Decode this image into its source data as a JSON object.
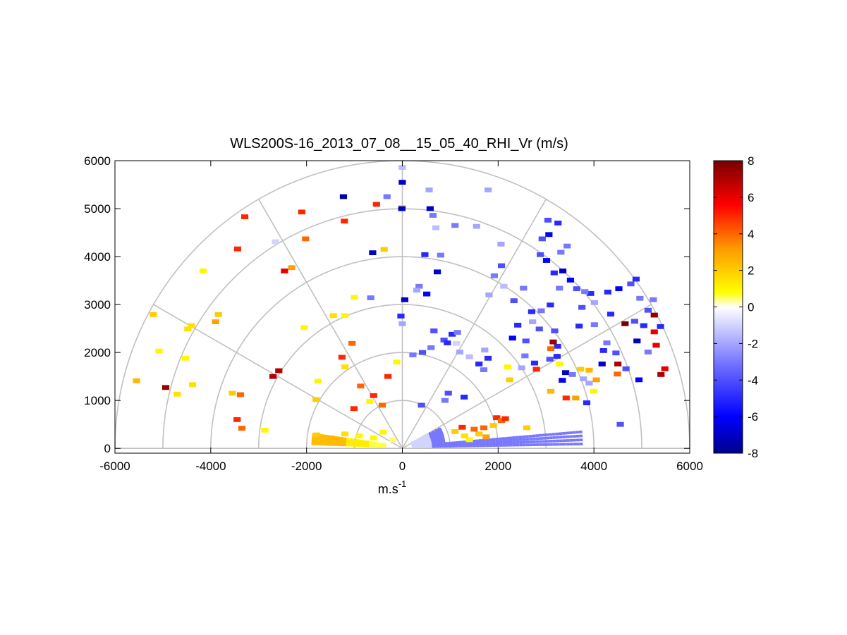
{
  "chart_data": {
    "type": "heatmap",
    "subtype": "polar-rhi-scan",
    "title": "WLS200S-16_2013_07_08__15_05_40_RHI_Vr (m/s)",
    "xlabel": "m.s",
    "xlabel_superscript": "-1",
    "ylabel": "",
    "xlim": [
      -6000,
      6000
    ],
    "ylim": [
      -100,
      6000
    ],
    "xticks": [
      -6000,
      -4000,
      -2000,
      0,
      2000,
      4000,
      6000
    ],
    "xtick_labels": [
      "-6000",
      "-4000",
      "-2000",
      "0",
      "2000",
      "4000",
      "6000"
    ],
    "yticks": [
      0,
      1000,
      2000,
      3000,
      4000,
      5000,
      6000
    ],
    "ytick_labels": [
      "0",
      "1000",
      "2000",
      "3000",
      "4000",
      "5000",
      "6000"
    ],
    "polar_grid": {
      "range_rings_m": [
        1000,
        2000,
        3000,
        4000,
        5000,
        6000
      ],
      "angle_spokes_deg": [
        0,
        30,
        60,
        90,
        120,
        150,
        180
      ],
      "grid_color": "#c0c0c0"
    },
    "colorbar": {
      "range": [
        -8,
        8
      ],
      "ticks": [
        -8,
        -6,
        -4,
        -2,
        0,
        2,
        4,
        6,
        8
      ],
      "tick_labels": [
        "-8",
        "-6",
        "-4",
        "-2",
        "0",
        "2",
        "4",
        "6",
        "8"
      ],
      "colormap": [
        "#00008c",
        "#0000ff",
        "#6f6fff",
        "#dcdcff",
        "#ffffff",
        "#ffff00",
        "#ff9900",
        "#ff0000",
        "#780000"
      ]
    },
    "gate_samples_note": "Representative sample of radial velocity gates (x_m, z_m, vr_ms) read off the scan",
    "gates": [
      [
        -1,
        5860,
        -1.5
      ],
      [
        -1,
        5550,
        -7
      ],
      [
        -2,
        5020,
        2
      ],
      [
        -540,
        5090,
        5
      ],
      [
        -1230,
        5250,
        -7.5
      ],
      [
        -320,
        5250,
        -3
      ],
      [
        -2100,
        4930,
        5
      ],
      [
        -3290,
        4830,
        5
      ],
      [
        -1210,
        4740,
        5
      ],
      [
        -2650,
        4310,
        -1
      ],
      [
        -3440,
        4160,
        5
      ],
      [
        -2020,
        4370,
        4
      ],
      [
        -620,
        4080,
        -7
      ],
      [
        -2460,
        3700,
        6
      ],
      [
        -2310,
        3770,
        3
      ],
      [
        -4160,
        3700,
        1
      ],
      [
        -380,
        4150,
        2
      ],
      [
        -3840,
        2790,
        2
      ],
      [
        -4400,
        2560,
        1.5
      ],
      [
        -3900,
        2640,
        3
      ],
      [
        -5200,
        2790,
        2
      ],
      [
        -4480,
        2490,
        1.5
      ],
      [
        -5080,
        2030,
        1
      ],
      [
        -4530,
        1880,
        1
      ],
      [
        -2580,
        1620,
        7
      ],
      [
        -3550,
        1150,
        2
      ],
      [
        -4380,
        1330,
        1.5
      ],
      [
        -4700,
        1130,
        1.5
      ],
      [
        -5550,
        1410,
        2.5
      ],
      [
        -4940,
        1270,
        7.5
      ],
      [
        -3380,
        1120,
        4
      ],
      [
        -3450,
        600,
        5
      ],
      [
        -3350,
        420,
        4
      ],
      [
        -1760,
        1400,
        1
      ],
      [
        -2870,
        380,
        1
      ],
      [
        -1790,
        280,
        2
      ],
      [
        -1500,
        220,
        2.5
      ],
      [
        -1200,
        300,
        1.5
      ],
      [
        -900,
        260,
        1
      ],
      [
        -600,
        220,
        1
      ],
      [
        -400,
        340,
        1
      ],
      [
        -200,
        180,
        0.5
      ],
      [
        -1800,
        1020,
        2
      ],
      [
        -1200,
        1700,
        1.5
      ],
      [
        -1050,
        2190,
        4
      ],
      [
        -120,
        1800,
        1
      ],
      [
        -300,
        1500,
        5
      ],
      [
        -600,
        1100,
        5
      ],
      [
        -870,
        1300,
        4
      ],
      [
        -1010,
        830,
        5
      ],
      [
        -680,
        980,
        1
      ],
      [
        -420,
        900,
        4
      ],
      [
        -2050,
        2520,
        1
      ],
      [
        -1000,
        3150,
        1
      ],
      [
        -1200,
        2770,
        1
      ],
      [
        -1440,
        2770,
        1.5
      ],
      [
        -1260,
        1900,
        5
      ],
      [
        -2700,
        1500,
        7
      ],
      [
        560,
        5390,
        -2
      ],
      [
        -10,
        5000,
        -7
      ],
      [
        580,
        5000,
        -7
      ],
      [
        640,
        4860,
        -3
      ],
      [
        700,
        4600,
        -1.5
      ],
      [
        470,
        4040,
        -5
      ],
      [
        730,
        3680,
        -7
      ],
      [
        800,
        4030,
        -3
      ],
      [
        350,
        3380,
        -3
      ],
      [
        50,
        3100,
        -7
      ],
      [
        300,
        3300,
        -2
      ],
      [
        510,
        3220,
        -6
      ],
      [
        -660,
        3140,
        -3
      ],
      [
        -30,
        2760,
        -5
      ],
      [
        -2,
        2600,
        -2
      ],
      [
        660,
        2450,
        -4
      ],
      [
        1040,
        2380,
        -5
      ],
      [
        870,
        2260,
        -4
      ],
      [
        940,
        2200,
        -5
      ],
      [
        1150,
        2420,
        -3
      ],
      [
        600,
        2100,
        -3
      ],
      [
        420,
        2000,
        -4
      ],
      [
        220,
        1950,
        -3
      ],
      [
        1200,
        2010,
        -2
      ],
      [
        1130,
        2190,
        -1
      ],
      [
        1400,
        1910,
        -1.5
      ],
      [
        1600,
        1760,
        -5
      ],
      [
        1700,
        1640,
        -3
      ],
      [
        1790,
        1880,
        -5
      ],
      [
        1720,
        2050,
        -2
      ],
      [
        960,
        1150,
        -4
      ],
      [
        1290,
        1070,
        -5
      ],
      [
        890,
        1000,
        -3
      ],
      [
        400,
        900,
        -4
      ],
      [
        1790,
        5390,
        -2
      ],
      [
        1550,
        4630,
        -2
      ],
      [
        1100,
        4650,
        -3
      ],
      [
        2060,
        4260,
        -2
      ],
      [
        2070,
        3810,
        -4
      ],
      [
        1920,
        3600,
        -3
      ],
      [
        1810,
        3200,
        -2
      ],
      [
        2120,
        3380,
        -1.5
      ],
      [
        2330,
        3080,
        -4
      ],
      [
        2530,
        3340,
        -3
      ],
      [
        2410,
        2570,
        -5
      ],
      [
        2300,
        2300,
        -6
      ],
      [
        2580,
        2240,
        -4
      ],
      [
        2700,
        2850,
        -5
      ],
      [
        2720,
        2640,
        -2
      ],
      [
        2860,
        2490,
        -4
      ],
      [
        2900,
        2870,
        -3
      ],
      [
        3090,
        2990,
        -5
      ],
      [
        3180,
        2450,
        -4
      ],
      [
        3240,
        2130,
        -5
      ],
      [
        2490,
        1680,
        -2
      ],
      [
        2560,
        1930,
        -3
      ],
      [
        2760,
        1780,
        -5
      ],
      [
        3080,
        1860,
        -4
      ],
      [
        3230,
        1920,
        -5
      ],
      [
        3410,
        1580,
        -7
      ],
      [
        3340,
        1420,
        -6
      ],
      [
        3550,
        1540,
        -3
      ],
      [
        3780,
        1450,
        -2
      ],
      [
        3900,
        1360,
        -2
      ],
      [
        3060,
        4460,
        -6
      ],
      [
        2920,
        4370,
        -4
      ],
      [
        3250,
        4700,
        -5
      ],
      [
        3040,
        4760,
        -4
      ],
      [
        3440,
        4220,
        -3
      ],
      [
        3310,
        4090,
        -3
      ],
      [
        2880,
        4040,
        -4
      ],
      [
        3010,
        3920,
        -6
      ],
      [
        3170,
        3660,
        -5
      ],
      [
        3350,
        3700,
        -7
      ],
      [
        3280,
        3340,
        -3
      ],
      [
        3510,
        3510,
        -6
      ],
      [
        3640,
        3330,
        -4
      ],
      [
        3930,
        3230,
        -5
      ],
      [
        3810,
        3270,
        -3
      ],
      [
        4010,
        3040,
        -2
      ],
      [
        4290,
        3260,
        -5
      ],
      [
        3750,
        2940,
        -4
      ],
      [
        3690,
        2550,
        -5
      ],
      [
        4010,
        2580,
        -3
      ],
      [
        4350,
        2800,
        -5
      ],
      [
        4520,
        3330,
        -6
      ],
      [
        4770,
        3430,
        -4
      ],
      [
        4880,
        3530,
        -5
      ],
      [
        4960,
        3130,
        -3
      ],
      [
        4270,
        2200,
        -3
      ],
      [
        4200,
        2040,
        -5
      ],
      [
        4170,
        1760,
        -7
      ],
      [
        4460,
        1990,
        -4
      ],
      [
        4670,
        1660,
        -4
      ],
      [
        4940,
        1430,
        -6
      ],
      [
        4900,
        2240,
        -7
      ],
      [
        5040,
        2560,
        -5
      ],
      [
        4850,
        2650,
        -4
      ],
      [
        5240,
        3100,
        -3
      ],
      [
        5130,
        2880,
        -4
      ],
      [
        5390,
        2540,
        -5
      ],
      [
        5130,
        2010,
        -3
      ],
      [
        4550,
        500,
        -4
      ],
      [
        3850,
        950,
        -5
      ],
      [
        4500,
        1760,
        7
      ],
      [
        4490,
        1550,
        4
      ],
      [
        3990,
        1190,
        1
      ],
      [
        4050,
        1430,
        3
      ],
      [
        3900,
        1630,
        2.5
      ],
      [
        3100,
        1190,
        2.5
      ],
      [
        3420,
        1050,
        5
      ],
      [
        3620,
        1050,
        3
      ],
      [
        3150,
        2220,
        7.5
      ],
      [
        3100,
        2080,
        4
      ],
      [
        3280,
        1760,
        1
      ],
      [
        3720,
        1650,
        2
      ],
      [
        2800,
        1650,
        5
      ],
      [
        2240,
        1430,
        2
      ],
      [
        2200,
        1700,
        1
      ],
      [
        4650,
        2600,
        8
      ],
      [
        5260,
        2780,
        7.5
      ],
      [
        5260,
        2430,
        6
      ],
      [
        5300,
        2150,
        6
      ],
      [
        5400,
        1540,
        7
      ],
      [
        5480,
        1660,
        6
      ],
      [
        1970,
        640,
        5
      ],
      [
        2070,
        580,
        4
      ],
      [
        2150,
        620,
        5
      ],
      [
        2600,
        430,
        2
      ],
      [
        1700,
        430,
        4
      ],
      [
        1900,
        480,
        2
      ],
      [
        1600,
        300,
        2
      ],
      [
        1750,
        240,
        3
      ],
      [
        1400,
        180,
        1
      ],
      [
        1500,
        400,
        4
      ],
      [
        1300,
        260,
        1.5
      ],
      [
        1250,
        440,
        5
      ],
      [
        1100,
        350,
        2
      ]
    ],
    "gate_size_m": [
      150,
      100
    ]
  }
}
